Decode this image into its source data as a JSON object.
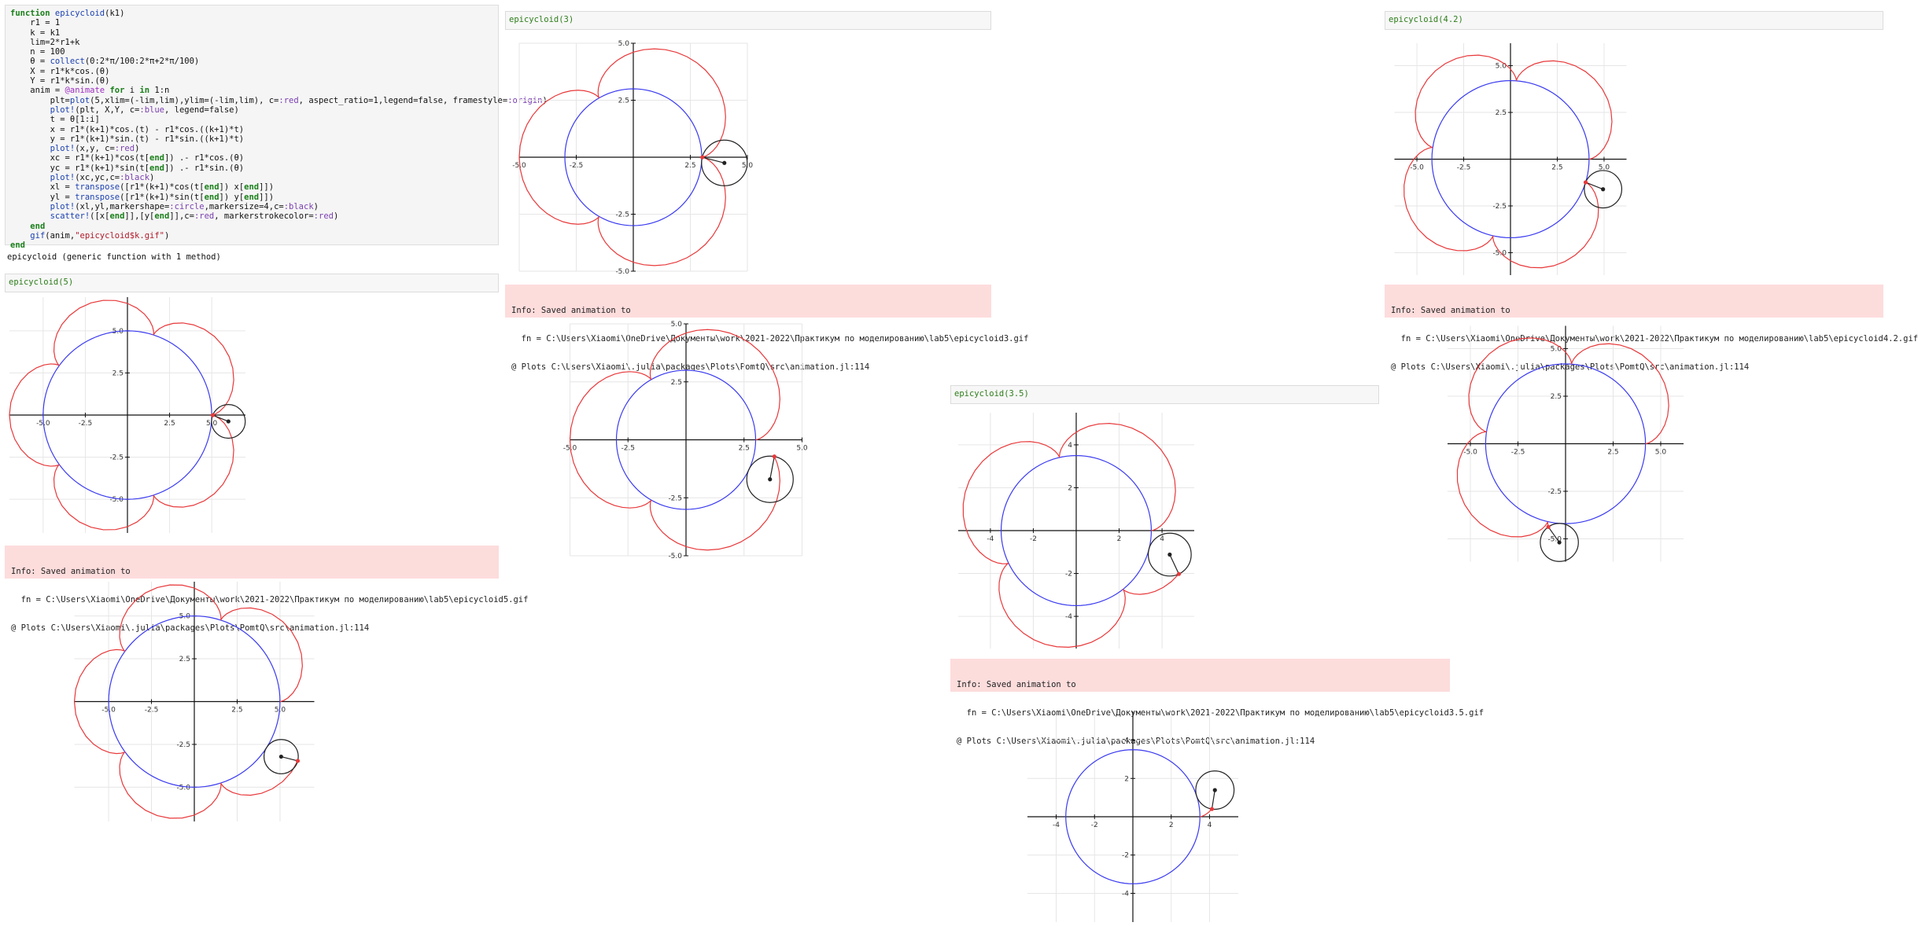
{
  "code_lines": [
    "function epicycloid(k1)",
    "    r1 = 1",
    "    k = k1",
    "    lim=2*r1+k",
    "    n = 100",
    "    θ = collect(0:2*π/100:2*π+2*π/100)",
    "    X = r1*k*cos.(θ)",
    "    Y = r1*k*sin.(θ)",
    "    anim = @animate for i in 1:n",
    "        plt=plot(5,xlim=(-lim,lim),ylim=(-lim,lim), c=:red, aspect_ratio=1,legend=false, framestyle=:origin)",
    "        plot!(plt, X,Y, c=:blue, legend=false)",
    "        t = θ[1:i]",
    "        x = r1*(k+1)*cos.(t) - r1*cos.((k+1)*t)",
    "        y = r1*(k+1)*sin.(t) - r1*sin.((k+1)*t)",
    "        plot!(x,y, c=:red)",
    "        xc = r1*(k+1)*cos(t[end]) .- r1*cos.(θ)",
    "        yc = r1*(k+1)*sin(t[end]) .- r1*sin.(θ)",
    "        plot!(xc,yc,c=:black)",
    "        xl = transpose([r1*(k+1)*cos(t[end]) x[end]])",
    "        yl = transpose([r1*(k+1)*sin(t[end]) y[end]])",
    "        plot!(xl,yl,markershape=:circle,markersize=4,c=:black)",
    "        scatter!([x[end]],[y[end]],c=:red, markerstrokecolor=:red)",
    "    end",
    "    gif(anim,\"epicycloid$k.gif\")",
    "end"
  ],
  "function_output": "epicycloid (generic function with 1 method)",
  "cells": {
    "c5": "epicycloid(5)",
    "c3": "epicycloid(3)",
    "c35": "epicycloid(3.5)",
    "c42": "epicycloid(4.2)"
  },
  "infos": {
    "i5": [
      "Info: Saved animation to",
      "  fn = C:\\Users\\Xiaomi\\OneDrive\\Документы\\work\\2021-2022\\Практикум по моделированию\\lab5\\epicycloid5.gif",
      "@ Plots C:\\Users\\Xiaomi\\.julia\\packages\\Plots\\PomtQ\\src\\animation.jl:114"
    ],
    "i3": [
      "Info: Saved animation to",
      "  fn = C:\\Users\\Xiaomi\\OneDrive\\Документы\\work\\2021-2022\\Практикум по моделированию\\lab5\\epicycloid3.gif",
      "@ Plots C:\\Users\\Xiaomi\\.julia\\packages\\Plots\\PomtQ\\src\\animation.jl:114"
    ],
    "i35": [
      "Info: Saved animation to",
      "  fn = C:\\Users\\Xiaomi\\OneDrive\\Документы\\work\\2021-2022\\Практикум по моделированию\\lab5\\epicycloid3.5.gif",
      "@ Plots C:\\Users\\Xiaomi\\.julia\\packages\\Plots\\PomtQ\\src\\animation.jl:114"
    ],
    "i42": [
      "Info: Saved animation to",
      "  fn = C:\\Users\\Xiaomi\\OneDrive\\Документы\\work\\2021-2022\\Практикум по моделированию\\lab5\\epicycloid4.2.gif",
      "@ Plots C:\\Users\\Xiaomi\\.julia\\packages\\Plots\\PomtQ\\src\\animation.jl:114"
    ]
  },
  "colors": {
    "base": "#3a3af0",
    "trace": "#e8383a",
    "rolling": "#222222",
    "grid": "#e6e6e6"
  },
  "chart_data": [
    {
      "type": "line",
      "id": "p5a",
      "k": 5,
      "frame": 100,
      "xlim": [
        -7,
        7
      ],
      "ylim": [
        -7,
        7
      ],
      "xticks": [
        -5.0,
        -2.5,
        2.5,
        5.0
      ],
      "yticks": [
        -5.0,
        -2.5,
        2.5,
        5.0
      ],
      "grid": true
    },
    {
      "type": "line",
      "id": "p5b",
      "k": 5,
      "frame": 92,
      "xlim": [
        -7,
        7
      ],
      "ylim": [
        -7,
        7
      ],
      "xticks": [
        -5.0,
        -2.5,
        2.5,
        5.0
      ],
      "yticks": [
        -5.0,
        -2.5,
        2.5,
        5.0
      ],
      "grid": true
    },
    {
      "type": "line",
      "id": "p3a",
      "k": 3,
      "frame": 100,
      "xlim": [
        -5,
        5
      ],
      "ylim": [
        -5,
        5
      ],
      "xticks": [
        -5.0,
        -2.5,
        2.5,
        5.0
      ],
      "yticks": [
        -5.0,
        -2.5,
        2.5,
        5.0
      ],
      "grid": true
    },
    {
      "type": "line",
      "id": "p3b",
      "k": 3,
      "frame": 94,
      "xlim": [
        -5,
        5
      ],
      "ylim": [
        -5,
        5
      ],
      "xticks": [
        -5.0,
        -2.5,
        2.5,
        5.0
      ],
      "yticks": [
        -5.0,
        -2.5,
        2.5,
        5.0
      ],
      "grid": true
    },
    {
      "type": "line",
      "id": "p35a",
      "k": 3.5,
      "frame": 97,
      "xlim": [
        -5.5,
        5.5
      ],
      "ylim": [
        -5.5,
        5.5
      ],
      "xticks": [
        -4,
        -2,
        2,
        4
      ],
      "yticks": [
        -4,
        -2,
        2,
        4
      ],
      "grid": true
    },
    {
      "type": "line",
      "id": "p35b",
      "k": 3.5,
      "frame": 6,
      "xlim": [
        -5.5,
        5.5
      ],
      "ylim": [
        -5.5,
        5.5
      ],
      "xticks": [
        -4,
        -2,
        2,
        4
      ],
      "yticks": [
        -4,
        -2,
        2,
        4
      ],
      "grid": true
    },
    {
      "type": "line",
      "id": "p42a",
      "k": 4.2,
      "frame": 96,
      "xlim": [
        -6.2,
        6.2
      ],
      "ylim": [
        -6.2,
        6.2
      ],
      "xticks": [
        -5.0,
        -2.5,
        2.5,
        5.0
      ],
      "yticks": [
        -5.0,
        -2.5,
        2.5,
        5.0
      ],
      "grid": true
    },
    {
      "type": "line",
      "id": "p42b",
      "k": 4.2,
      "frame": 75,
      "xlim": [
        -6.2,
        6.2
      ],
      "ylim": [
        -6.2,
        6.2
      ],
      "xticks": [
        -5.0,
        -2.5,
        2.5,
        5.0
      ],
      "yticks": [
        -5.0,
        -2.5,
        2.5,
        5.0
      ],
      "grid": true
    }
  ]
}
